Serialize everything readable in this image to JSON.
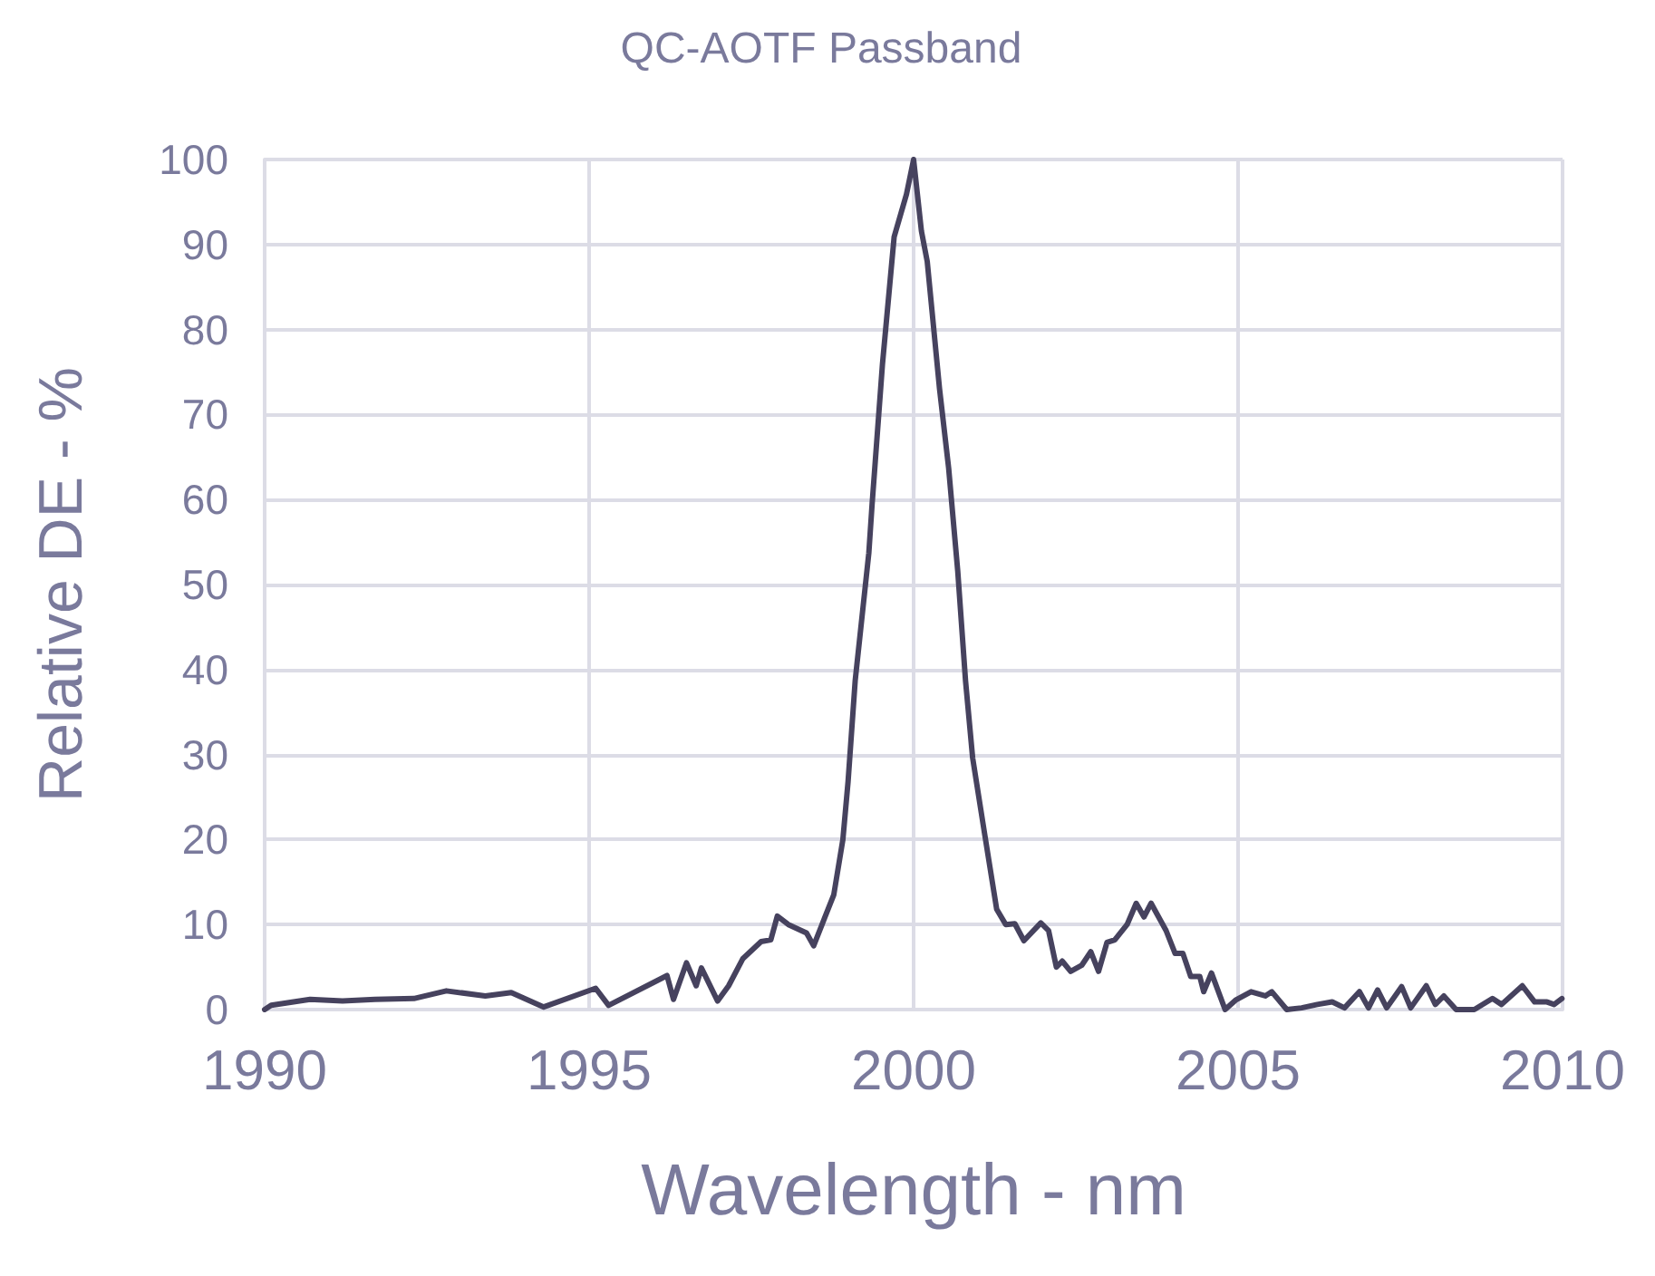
{
  "chart_data": {
    "type": "line",
    "title": "QC-AOTF Passband",
    "xlabel": "Wavelength - nm",
    "ylabel": "Relative DE - %",
    "xlim": [
      1990,
      2010
    ],
    "xticks": [
      1990,
      1995,
      2000,
      2005,
      2010
    ],
    "ylim": [
      0,
      100
    ],
    "yticks": [
      0,
      10,
      20,
      30,
      40,
      50,
      60,
      70,
      80,
      90,
      100
    ],
    "grid": true,
    "marker": "none",
    "line_style": "solid",
    "series": [
      {
        "color": "#46425e",
        "x": [
          1990.0,
          1990.1,
          1990.7,
          1991.2,
          1991.7,
          1992.3,
          1992.8,
          1993.4,
          1993.8,
          1994.3,
          1995.1,
          1995.3,
          1996.2,
          1996.3,
          1996.5,
          1996.65,
          1996.73,
          1996.98,
          1997.15,
          1997.37,
          1997.65,
          1997.8,
          1997.9,
          1998.07,
          1998.35,
          1998.46,
          1998.63,
          1998.77,
          1998.91,
          1998.99,
          1999.1,
          1999.31,
          1999.36,
          1999.52,
          1999.7,
          1999.89,
          2000.0,
          2000.12,
          2000.21,
          2000.4,
          2000.54,
          2000.68,
          2000.8,
          2000.91,
          2001.1,
          2001.28,
          2001.42,
          2001.56,
          2001.7,
          2001.96,
          2002.08,
          2002.2,
          2002.29,
          2002.42,
          2002.59,
          2002.73,
          2002.85,
          2002.98,
          2003.1,
          2003.29,
          2003.43,
          2003.55,
          2003.66,
          2003.89,
          2004.03,
          2004.15,
          2004.27,
          2004.41,
          2004.47,
          2004.59,
          2004.8,
          2004.96,
          2005.2,
          2005.42,
          2005.52,
          2005.75,
          2005.98,
          2006.22,
          2006.45,
          2006.64,
          2006.87,
          2007.01,
          2007.15,
          2007.29,
          2007.52,
          2007.66,
          2007.9,
          2008.04,
          2008.17,
          2008.36,
          2008.64,
          2008.92,
          2009.06,
          2009.38,
          2009.57,
          2009.76,
          2009.87,
          2009.99
        ],
        "values": [
          0,
          0.5,
          1.2,
          1,
          1.2,
          1.3,
          2.2,
          1.6,
          2,
          0.3,
          2.5,
          0.5,
          4,
          1.2,
          5.5,
          2.8,
          4.9,
          1,
          2.8,
          6,
          8,
          8.2,
          11,
          10,
          9,
          7.5,
          10.8,
          13.5,
          20,
          26.8,
          38.7,
          53.7,
          59.4,
          75.9,
          90.9,
          95.9,
          100,
          91.6,
          88,
          73,
          63.7,
          51.6,
          38.7,
          29.6,
          20.4,
          11.8,
          10,
          10.1,
          8.1,
          10.2,
          9.3,
          5,
          5.7,
          4.5,
          5.2,
          6.8,
          4.5,
          7.9,
          8.2,
          10,
          12.5,
          10.9,
          12.5,
          9.3,
          6.6,
          6.6,
          3.9,
          3.9,
          2.1,
          4.3,
          0,
          1.1,
          2.1,
          1.6,
          2.1,
          0,
          0.2,
          0.6,
          0.9,
          0.2,
          2.1,
          0.2,
          2.3,
          0.2,
          2.7,
          0.2,
          2.8,
          0.6,
          1.6,
          0,
          0,
          1.3,
          0.6,
          2.8,
          0.9,
          0.9,
          0.6,
          1.3
        ]
      }
    ]
  }
}
